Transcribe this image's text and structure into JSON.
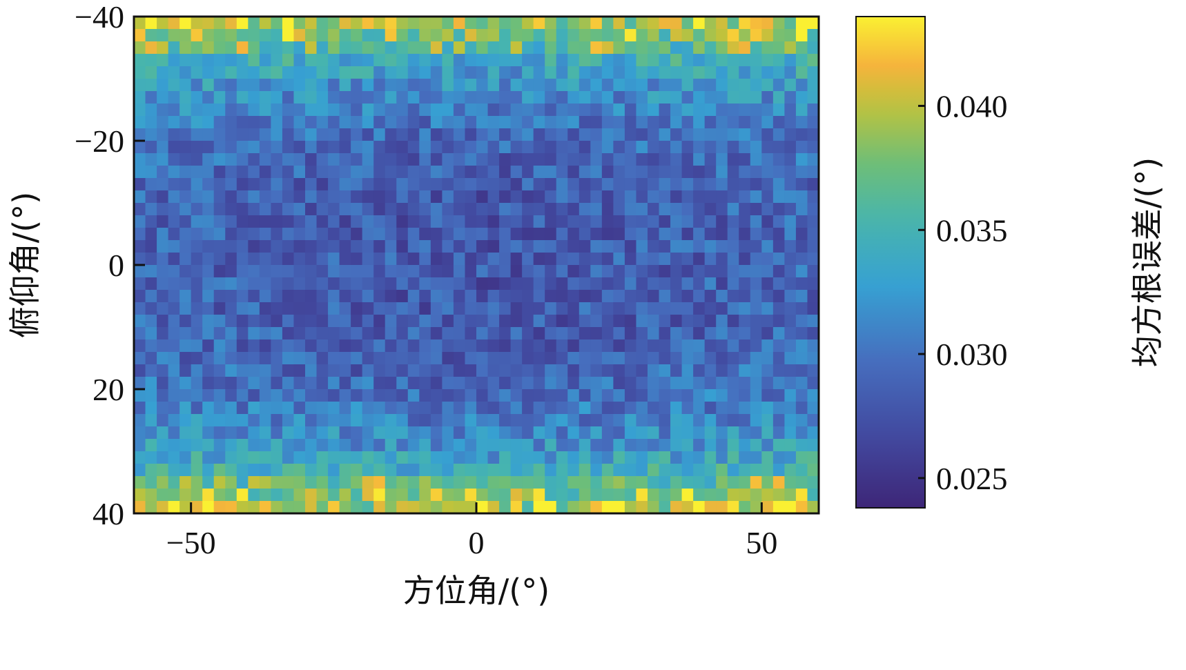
{
  "chart_data": {
    "type": "heatmap",
    "title": "",
    "xlabel": "方位角/(°)",
    "ylabel": "俯仰角/(°)",
    "colorbar_label": "均方根误差/(°)",
    "colormap": "parula",
    "xlim": [
      -60,
      60
    ],
    "ylim": [
      -40,
      40
    ],
    "y_axis_reversed": true,
    "x_ticks": [
      {
        "value": -50,
        "label": "−50"
      },
      {
        "value": 0,
        "label": "0"
      },
      {
        "value": 50,
        "label": "50"
      }
    ],
    "y_ticks": [
      {
        "value": -40,
        "label": "−40"
      },
      {
        "value": -20,
        "label": "−20"
      },
      {
        "value": 0,
        "label": "0"
      },
      {
        "value": 20,
        "label": "20"
      },
      {
        "value": 40,
        "label": "40"
      }
    ],
    "colorbar": {
      "clim": [
        0.0238,
        0.0436
      ],
      "ticks": [
        {
          "value": 0.025,
          "label": "0.025"
        },
        {
          "value": 0.03,
          "label": "0.030"
        },
        {
          "value": 0.035,
          "label": "0.035"
        },
        {
          "value": 0.04,
          "label": "0.040"
        }
      ]
    },
    "grid": {
      "azimuth_step": 2,
      "elevation_step": 2,
      "cols": 60,
      "rows": 40,
      "note_on_values": "per-cell RMSE values in degrees; centre ≈ 0.027–0.029, edges in elevation rise to ≈ 0.038–0.043"
    }
  },
  "colors": {
    "axis": "#111111",
    "background": "#ffffff"
  }
}
